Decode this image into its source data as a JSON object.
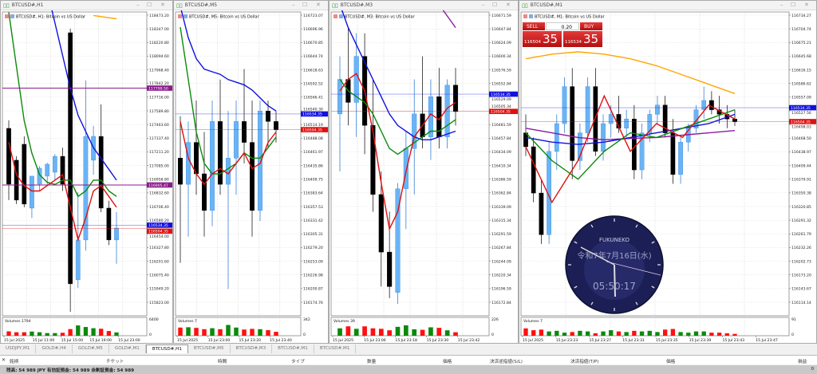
{
  "windows": [
    {
      "title": "BTCUSD#,H1",
      "legend": "BTCUSD#, H1:  Bitcoin vs US Dollar",
      "axis_ticks": [
        "118473.20",
        "118347.00",
        "118220.80",
        "118094.60",
        "117968.40",
        "117842.20",
        "117716.00",
        "117589.80",
        "117463.60",
        "117337.40",
        "117211.20",
        "117085.00",
        "116958.80",
        "116832.60",
        "116706.40",
        "116580.20",
        "116454.00",
        "116327.80",
        "116201.60",
        "116075.40",
        "115949.20",
        "115823.00"
      ],
      "ask": "116534.35",
      "bid": "116504.35",
      "hlines": [
        {
          "price": 117799.5,
          "label": "117799.50",
          "color": "#8b1a8b"
        },
        {
          "price": 116905.47,
          "label": "116905.47",
          "color": "#8b1a8b"
        }
      ],
      "candles": [
        [
          117428,
          117502,
          116766,
          116913
        ],
        [
          117134,
          117170,
          116729,
          116766
        ],
        [
          117281,
          117354,
          116700,
          116729
        ],
        [
          116692,
          116987,
          116600,
          116987
        ],
        [
          116913,
          117080,
          116850,
          117060
        ],
        [
          116987,
          117110,
          116900,
          117097
        ],
        [
          117023,
          117190,
          116950,
          117170
        ],
        [
          117170,
          117250,
          116850,
          116913
        ],
        [
          118311,
          118348,
          115735,
          115993
        ],
        [
          116030,
          116839,
          115956,
          116398
        ],
        [
          116398,
          117870,
          116300,
          117354
        ],
        [
          117134,
          117450,
          117000,
          117354
        ],
        [
          117354,
          117649,
          116655,
          116692
        ],
        [
          116692,
          116760,
          116350,
          116398
        ],
        [
          116398,
          116655,
          116177,
          116508
        ]
      ],
      "volumes": [
        2500,
        2000,
        2000,
        2400,
        2000,
        1500,
        1500,
        1700,
        3800,
        5900,
        5000,
        4300,
        4000,
        2700,
        1900
      ],
      "volume_label": "Volumes 1794",
      "volume_max": "6400",
      "volume_min": "0",
      "time_labels": [
        "15 Jul 2025",
        "15 Jul 11:00",
        "15 Jul 15:00",
        "15 Jul 19:00",
        "15 Jul 23:00"
      ],
      "mas": [
        {
          "color": "#1010e0",
          "points": [
            null,
            null,
            null,
            null,
            null,
            118700,
            118400,
            118100,
            117800,
            117550,
            117400,
            117250,
            117150,
            117050,
            116950
          ]
        },
        {
          "color": "#0a8a0a",
          "points": [
            118500,
            118000,
            117500,
            117200,
            117000,
            116930,
            116910,
            116950,
            116950,
            116800,
            116850,
            116950,
            116950,
            116850,
            116800
          ]
        },
        {
          "color": "#e01010",
          "points": [
            117300,
            117000,
            116900,
            116850,
            116850,
            116900,
            116950,
            117000,
            116700,
            116400,
            116600,
            116850,
            116900,
            116800,
            116700
          ]
        },
        {
          "color": "#ffa500",
          "points": [
            null,
            null,
            null,
            null,
            null,
            null,
            null,
            null,
            null,
            null,
            null,
            118470,
            118460,
            118450,
            118440
          ]
        }
      ]
    },
    {
      "title": "BTCUSD#,M5",
      "legend": "BTCUSD#, M5:  Bitcoin vs US Dollar",
      "axis_ticks": [
        "116723.07",
        "116696.96",
        "116670.85",
        "116644.74",
        "116618.63",
        "116592.52",
        "116566.41",
        "116540.30",
        "116514.19",
        "116488.08",
        "116461.97",
        "116435.86",
        "116409.75",
        "116383.64",
        "116357.53",
        "116331.42",
        "116305.31",
        "116279.20",
        "116253.09",
        "116226.98",
        "116200.87",
        "116174.76"
      ],
      "ask": "116534.35",
      "bid": "116504.35",
      "hlines": [],
      "candles": [
        [
          116450,
          116530,
          116250,
          116400
        ],
        [
          116400,
          116520,
          116300,
          116480
        ],
        [
          116480,
          116560,
          116380,
          116420
        ],
        [
          116420,
          116500,
          116300,
          116350
        ],
        [
          116350,
          116560,
          116320,
          116520
        ],
        [
          116520,
          116600,
          116380,
          116400
        ],
        [
          116400,
          116540,
          116200,
          116450
        ],
        [
          116450,
          116560,
          116380,
          116520
        ],
        [
          116520,
          116620,
          116440,
          116480
        ],
        [
          116480,
          116560,
          116300,
          116350
        ],
        [
          116350,
          116560,
          116330,
          116540
        ],
        [
          116540,
          116560,
          116470,
          116520
        ],
        [
          116520,
          116540,
          116480,
          116504
        ]
      ],
      "volumes": [
        250,
        260,
        240,
        200,
        230,
        200,
        330,
        250,
        190,
        210,
        200,
        170,
        120
      ],
      "volume_label": "Volumes 7",
      "volume_max": "342",
      "volume_min": "0",
      "time_labels": [
        "15 Jul 2025",
        "15 Jul 23:00",
        "15 Jul 23:20",
        "15 Jul 23:40"
      ],
      "mas": [
        {
          "color": "#1010e0",
          "points": [
            116740,
            116680,
            116640,
            116620,
            116615,
            116610,
            116600,
            116595,
            116590,
            116580,
            116565,
            116550,
            116540
          ]
        },
        {
          "color": "#0a8a0a",
          "points": [
            116700,
            116600,
            116500,
            116440,
            116420,
            116420,
            116430,
            116440,
            116460,
            116450,
            116450,
            116470,
            116490
          ]
        },
        {
          "color": "#e01010",
          "points": [
            116520,
            116450,
            116420,
            116400,
            116420,
            116430,
            116420,
            116440,
            116460,
            116430,
            116440,
            116480,
            116500
          ]
        }
      ]
    },
    {
      "title": "BTCUSD#,M3",
      "legend": "BTCUSD#, M3:  Bitcoin vs US Dollar",
      "axis_ticks": [
        "116671.59",
        "116647.84",
        "116624.09",
        "116600.34",
        "116576.59",
        "116552.84",
        "116529.09",
        "116505.34",
        "116481.59",
        "116457.84",
        "116434.09",
        "116410.34",
        "116386.59",
        "116362.84",
        "116339.09",
        "116315.34",
        "116291.59",
        "116267.84",
        "116244.09",
        "116220.34",
        "116196.59",
        "116172.84"
      ],
      "ask": "116534.35",
      "bid": "116504.35",
      "hlines": [],
      "candles": [
        [
          116500,
          116600,
          116400,
          116560
        ],
        [
          116560,
          116650,
          116480,
          116520
        ],
        [
          116520,
          116640,
          116460,
          116600
        ],
        [
          116600,
          116640,
          116430,
          116480
        ],
        [
          116480,
          116560,
          116330,
          116360
        ],
        [
          116360,
          116400,
          116200,
          116260
        ],
        [
          116260,
          116330,
          116180,
          116200
        ],
        [
          116190,
          116380,
          116170,
          116370
        ],
        [
          116370,
          116470,
          116300,
          116440
        ],
        [
          116440,
          116560,
          116360,
          116500
        ],
        [
          116500,
          116600,
          116440,
          116460
        ],
        [
          116460,
          116560,
          116420,
          116530
        ],
        [
          116530,
          116580,
          116440,
          116460
        ],
        [
          116460,
          116560,
          116440,
          116550
        ],
        [
          116550,
          116580,
          116480,
          116504
        ]
      ],
      "volumes": [
        150,
        190,
        140,
        190,
        150,
        140,
        110,
        180,
        210,
        130,
        120,
        170,
        160,
        110,
        70
      ],
      "volume_label": "Volumes 39",
      "volume_max": "226",
      "volume_min": "0",
      "time_labels": [
        "15 Jul 2025",
        "15 Jul 23:06",
        "15 Jul 23:18",
        "15 Jul 23:30",
        "15 Jul 23:42"
      ],
      "mas": [
        {
          "color": "#1010e0",
          "points": [
            116690,
            116650,
            116620,
            116590,
            116560,
            116530,
            116500,
            116480,
            116470,
            116460,
            116455,
            116455,
            116460,
            116465,
            116470
          ]
        },
        {
          "color": "#0a8a0a",
          "points": [
            116560,
            116540,
            116530,
            116520,
            116500,
            116470,
            116440,
            116430,
            116440,
            116450,
            116460,
            116470,
            116470,
            116480,
            116490
          ]
        },
        {
          "color": "#e01010",
          "points": [
            116540,
            116560,
            116570,
            116540,
            116470,
            116380,
            116300,
            116330,
            116400,
            116460,
            116480,
            116500,
            116490,
            116510,
            116520
          ]
        },
        {
          "color": "#8b1aa0",
          "points": [
            null,
            null,
            null,
            null,
            null,
            null,
            null,
            null,
            null,
            null,
            null,
            null,
            116690,
            116670,
            116650
          ]
        }
      ]
    },
    {
      "title": "BTCUSD#,M1",
      "legend": "BTCUSD#, M1:  Bitcoin vs US Dollar",
      "axis_ticks": [
        "116734.27",
        "116704.74",
        "116675.21",
        "116645.68",
        "116616.15",
        "116586.62",
        "116557.09",
        "116527.56",
        "116498.03",
        "116468.50",
        "116438.97",
        "116409.44",
        "116379.91",
        "116350.38",
        "116320.85",
        "116291.32",
        "116261.79",
        "116232.26",
        "116202.73",
        "116173.20",
        "116143.67",
        "116114.14"
      ],
      "ask": "116534.35",
      "bid": "116504.35",
      "hlines": [],
      "candles": [
        [
          116480,
          116520,
          116430,
          116450
        ],
        [
          116450,
          116470,
          116330,
          116350
        ],
        [
          116350,
          116380,
          116240,
          116260
        ],
        [
          116260,
          116460,
          116240,
          116440
        ],
        [
          116440,
          116520,
          116400,
          116500
        ],
        [
          116500,
          116600,
          116480,
          116580
        ],
        [
          116580,
          116620,
          116380,
          116420
        ],
        [
          116420,
          116500,
          116400,
          116480
        ],
        [
          116480,
          116600,
          116460,
          116580
        ],
        [
          116580,
          116620,
          116430,
          116440
        ],
        [
          116440,
          116520,
          116420,
          116500
        ],
        [
          116500,
          116540,
          116470,
          116520
        ],
        [
          116520,
          116560,
          116480,
          116490
        ],
        [
          116490,
          116530,
          116470,
          116510
        ],
        [
          116510,
          116540,
          116380,
          116400
        ],
        [
          116400,
          116500,
          116380,
          116480
        ],
        [
          116480,
          116530,
          116460,
          116520
        ],
        [
          116520,
          116560,
          116500,
          116540
        ],
        [
          116540,
          116560,
          116470,
          116480
        ],
        [
          116480,
          116510,
          116370,
          116390
        ],
        [
          116390,
          116470,
          116370,
          116460
        ],
        [
          116460,
          116500,
          116440,
          116490
        ],
        [
          116490,
          116540,
          116480,
          116530
        ],
        [
          116530,
          116580,
          116510,
          116550
        ],
        [
          116550,
          116570,
          116520,
          116530
        ],
        [
          116530,
          116560,
          116500,
          116520
        ],
        [
          116520,
          116540,
          116490,
          116510
        ],
        [
          116510,
          116530,
          116495,
          116504
        ]
      ],
      "volumes": [
        60,
        45,
        50,
        35,
        40,
        25,
        30,
        40,
        35,
        20,
        35,
        45,
        35,
        30,
        40,
        35,
        40,
        30,
        50,
        55,
        30,
        25,
        35,
        35,
        25,
        25,
        20,
        15
      ],
      "volume_label": "Volumes 7",
      "volume_max": "91",
      "volume_min": "0",
      "time_labels": [
        "15 Jul 2025",
        "15 Jul 23:23",
        "15 Jul 23:27",
        "15 Jul 23:31",
        "15 Jul 23:35",
        "15 Jul 23:39",
        "15 Jul 23:43",
        "15 Jul 23:47"
      ],
      "mas": [
        {
          "color": "#ffa500",
          "points": [
            116640,
            116650,
            116655,
            116650,
            116640,
            116625,
            116605,
            116585,
            116565
          ]
        },
        {
          "color": "#8b1aa0",
          "points": [
            116490,
            116480,
            116470,
            116465,
            116468,
            116470,
            116475,
            116480,
            116485
          ]
        },
        {
          "color": "#1010e0",
          "points": [
            116470,
            116460,
            116455,
            116460,
            116470,
            116480,
            116490,
            116500,
            116520
          ]
        },
        {
          "color": "#0a8a0a",
          "points": [
            116480,
            116420,
            116380,
            116440,
            116480,
            116470,
            116490,
            116510,
            116530
          ]
        },
        {
          "color": "#e01010",
          "points": [
            116450,
            116330,
            116420,
            116560,
            116440,
            116500,
            116470,
            116540,
            116510
          ]
        }
      ]
    }
  ],
  "trade_panel": {
    "sell": "SELL",
    "buy": "BUY",
    "volume": "0.20",
    "sell_price_small": "116504",
    "sell_price_big": "35",
    "buy_price_small": "116534",
    "buy_price_big": "35"
  },
  "clock": {
    "brand": "FUKUNEKO",
    "date": "令和7年7月16日(水)",
    "time": "05:50:17"
  },
  "tabs": [
    {
      "label": "USDJPY,M1"
    },
    {
      "label": "GOLD#,H4"
    },
    {
      "label": "GOLD#,M5"
    },
    {
      "label": "GOLD#,M1"
    },
    {
      "label": "BTCUSD#,H1",
      "active": true
    },
    {
      "label": "BTCUSD#,M5"
    },
    {
      "label": "BTCUSD#,M3"
    },
    {
      "label": "BTCUSD#,M1"
    },
    {
      "label": "BTCUSD#,M1"
    }
  ],
  "toolbox": {
    "columns": [
      "銘柄",
      "チケット",
      "時間",
      "タイプ",
      "数量",
      "価格",
      "決済逆指値(S/L)",
      "決済指値(T/P)",
      "価格",
      "損益"
    ],
    "status": "残高: 54 989 JPY  有効証拠金: 54 989  余剰証拠金: 54 989",
    "profit": "0"
  },
  "colors": {
    "bull": "#6ab4f5",
    "bear": "#000000",
    "vol_up": "#0a8a0a",
    "vol_down": "#ff1010",
    "ask": "#1010e0",
    "bid": "#e01010"
  }
}
